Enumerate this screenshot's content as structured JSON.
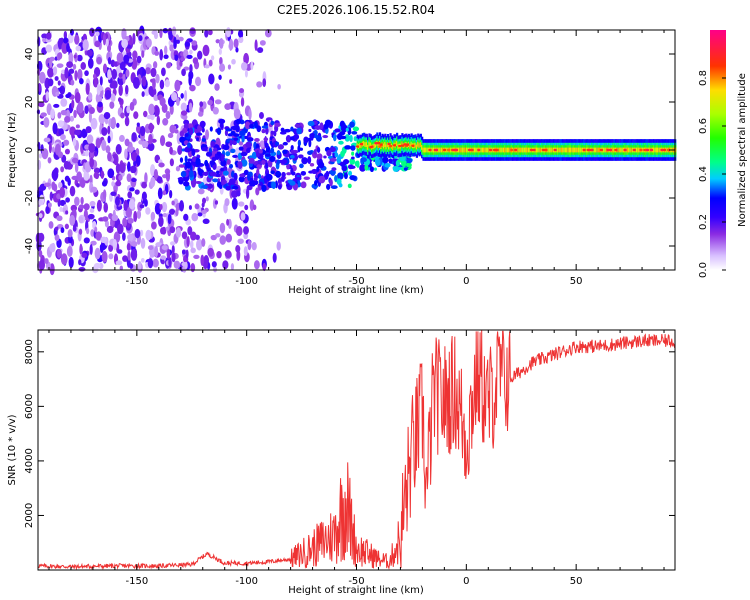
{
  "title": "C2E5.2026.106.15.52.R04",
  "chart_data": [
    {
      "type": "heatmap",
      "xlabel": "Height of straight line (km)",
      "ylabel": "Frequency (Hz)",
      "xlim": [
        -195,
        95
      ],
      "ylim": [
        -50,
        50
      ],
      "x_ticks": [
        -150,
        -100,
        -50,
        0,
        50
      ],
      "y_ticks": [
        -40,
        -20,
        0,
        20,
        40
      ],
      "colorbar": {
        "label": "Normalized spectral amplitude",
        "range": [
          0,
          1
        ],
        "ticks": [
          0.0,
          0.2,
          0.4,
          0.6,
          0.8
        ],
        "colors": [
          "#ffffff",
          "#c9a4ff",
          "#7b00ff",
          "#0000ff",
          "#00ffff",
          "#00ff00",
          "#ffff00",
          "#ff0000",
          "#ff00aa"
        ]
      },
      "description_of_features": {
        "noise_region_x": [
          -195,
          -90
        ],
        "carrier_center_freq": 0,
        "carrier_visible_from_x": -80
      }
    },
    {
      "type": "line",
      "xlabel": "Height of straight line (km)",
      "ylabel": "SNR (10 * v/v)",
      "xlim": [
        -195,
        95
      ],
      "ylim": [
        0,
        8800
      ],
      "x_ticks": [
        -150,
        -100,
        -50,
        0,
        50
      ],
      "y_ticks": [
        2000,
        4000,
        6000,
        8000
      ],
      "line_color": "#ee3333",
      "series": [
        {
          "x": [
            -195,
            -180,
            -160,
            -140,
            -125,
            -118,
            -110,
            -100,
            -90,
            -80,
            -70,
            -60,
            -55,
            -52,
            -50,
            -45,
            -40,
            -35,
            -30,
            -25,
            -20,
            -18,
            -15,
            -10,
            -5,
            0,
            5,
            10,
            15,
            20,
            25,
            30,
            40,
            50,
            60,
            70,
            80,
            90,
            95
          ],
          "y": [
            150,
            120,
            150,
            150,
            200,
            600,
            250,
            250,
            300,
            400,
            800,
            1300,
            2600,
            1500,
            800,
            600,
            400,
            300,
            1200,
            4200,
            5800,
            2800,
            6500,
            6200,
            6600,
            4800,
            7300,
            6000,
            7200,
            7000,
            7300,
            7600,
            7900,
            8200,
            8200,
            8300,
            8400,
            8400,
            8400
          ]
        }
      ]
    }
  ]
}
